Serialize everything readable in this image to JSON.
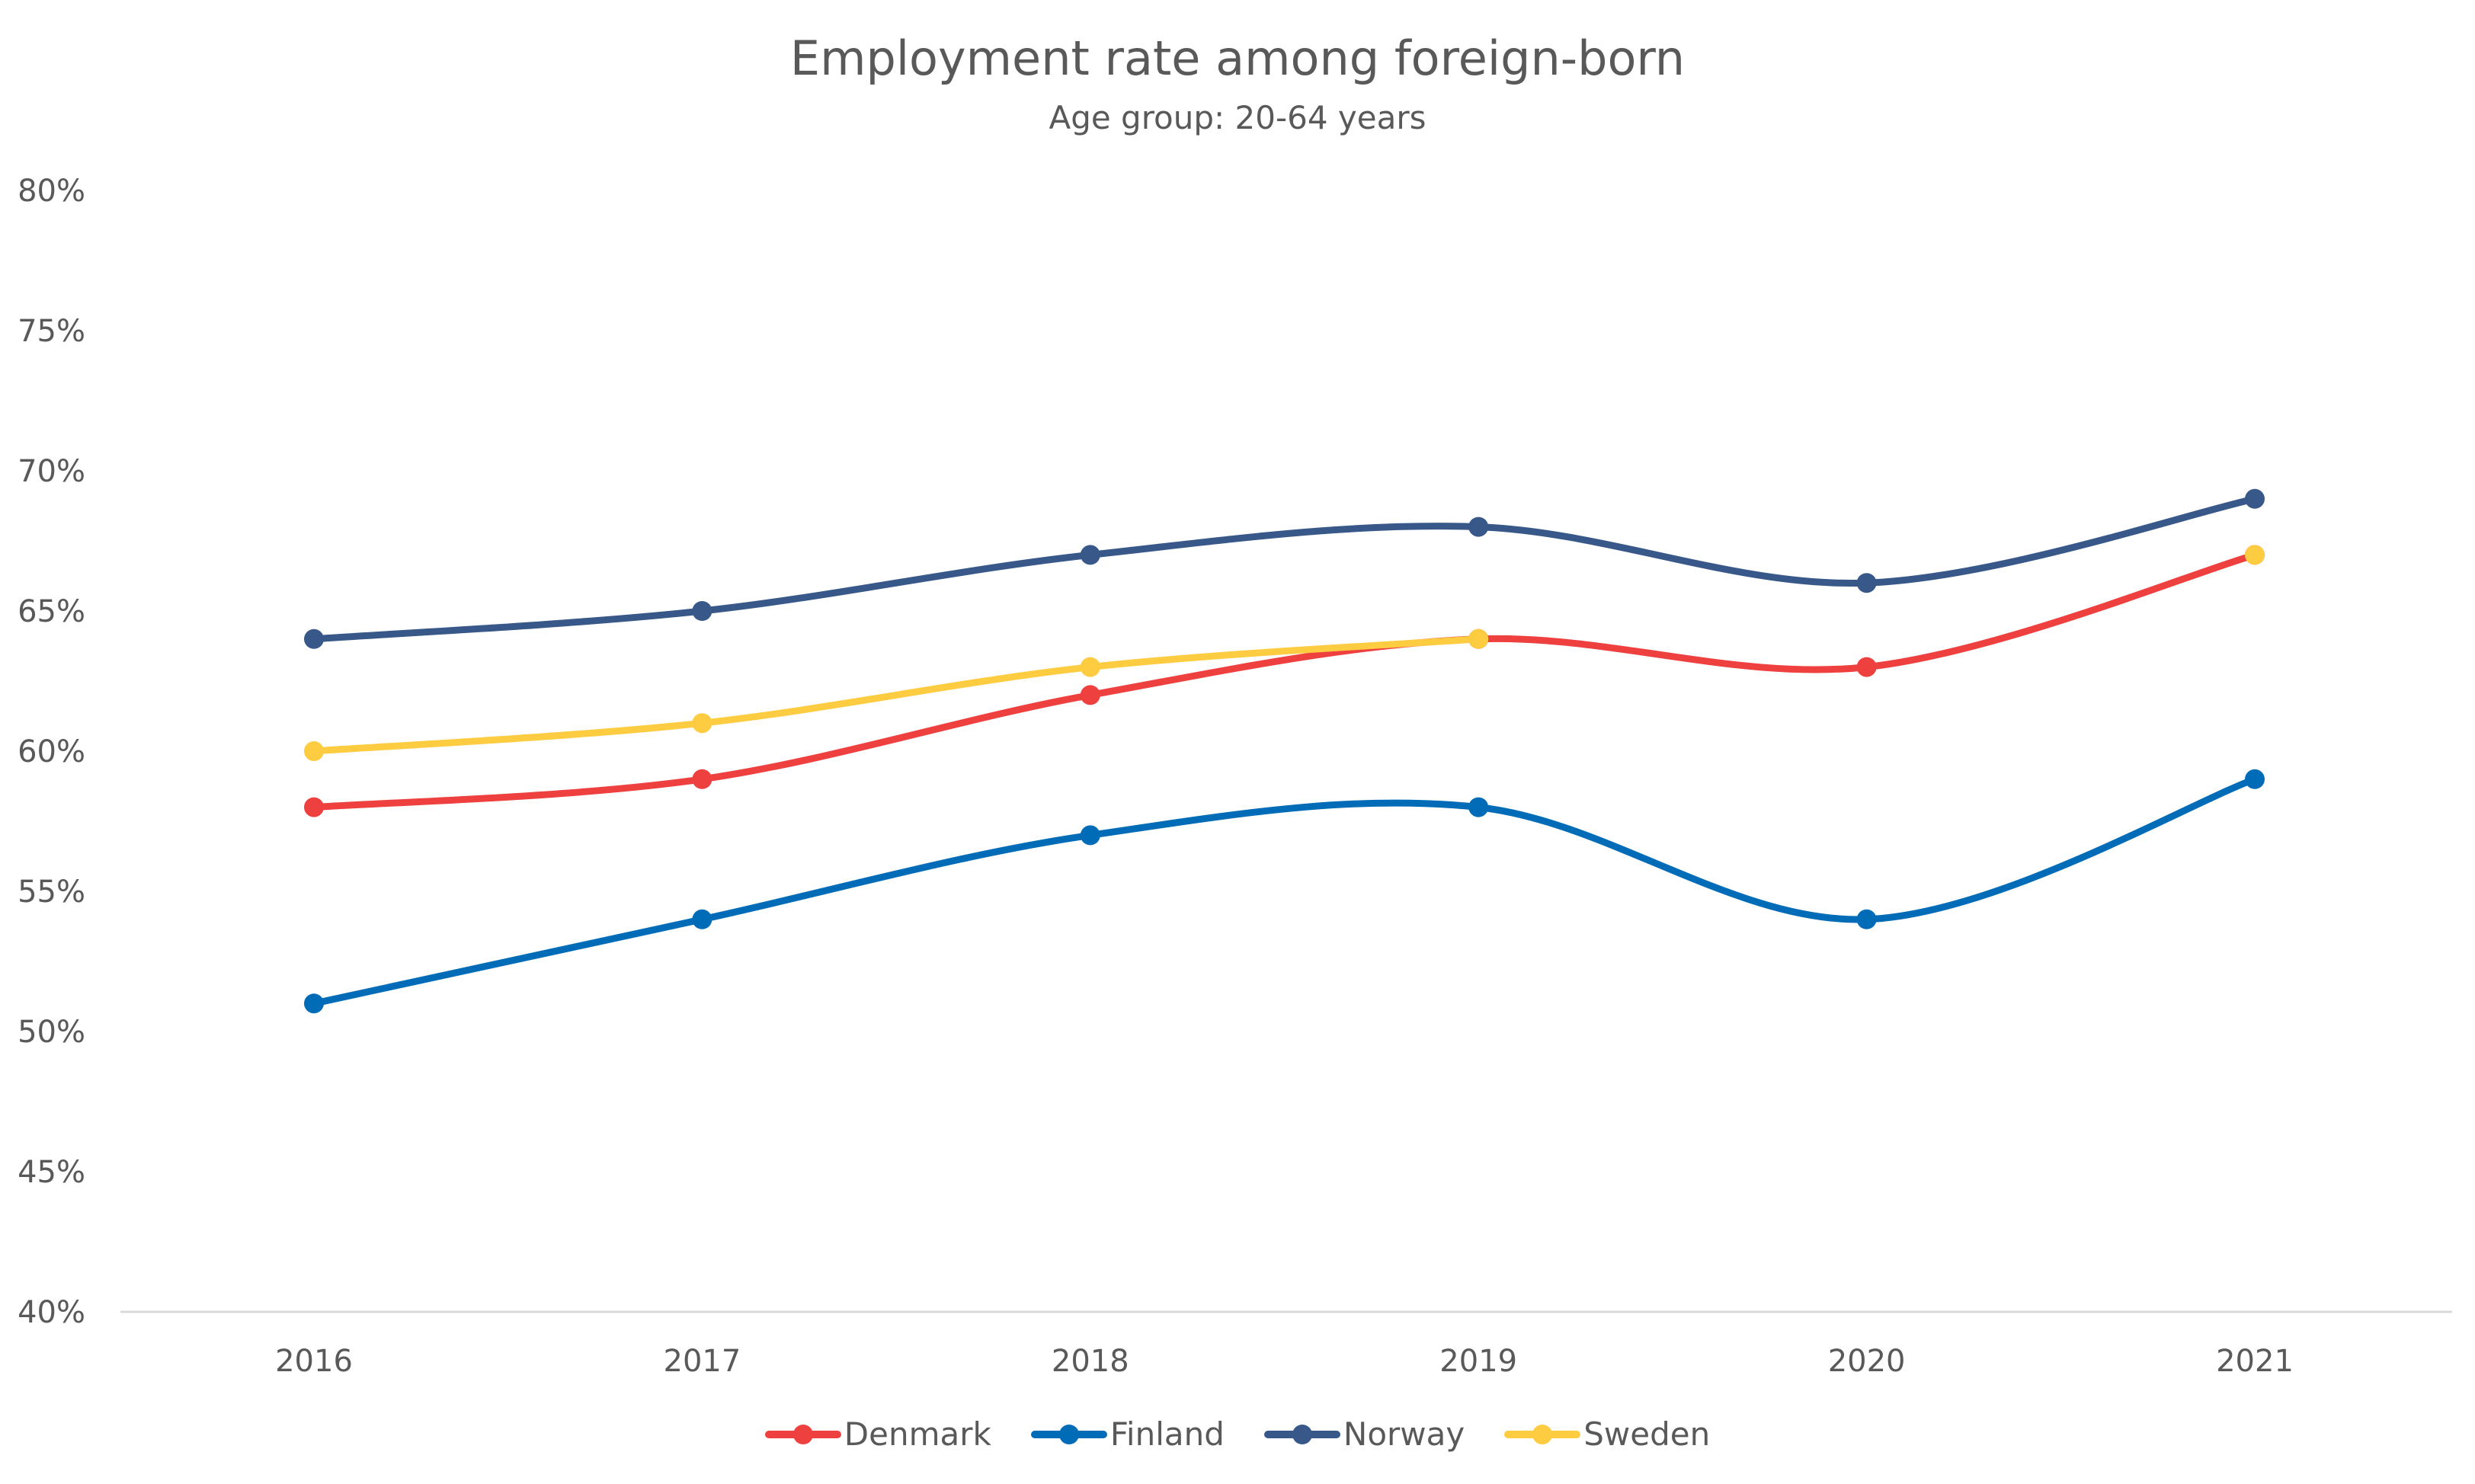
{
  "chart_data": {
    "type": "line",
    "title": "Employment rate among foreign-born",
    "subtitle": "Age group: 20-64 years",
    "xlabel": "",
    "ylabel": "",
    "categories": [
      "2016",
      "2017",
      "2018",
      "2019",
      "2020",
      "2021"
    ],
    "ylim": [
      40,
      80
    ],
    "yticks": [
      80,
      75,
      70,
      65,
      60,
      55,
      50,
      45,
      40
    ],
    "ytick_labels": [
      "80%",
      "75%",
      "70%",
      "65%",
      "60%",
      "55%",
      "50%",
      "45%",
      "40%"
    ],
    "grid": false,
    "smooth": true,
    "legend_position": "bottom",
    "series": [
      {
        "name": "Denmark",
        "color": "#EF4040",
        "values": [
          58,
          59,
          62,
          64,
          63,
          67
        ]
      },
      {
        "name": "Finland",
        "color": "#006BB6",
        "values": [
          51,
          54,
          57,
          58,
          54,
          59
        ]
      },
      {
        "name": "Norway",
        "color": "#375888",
        "values": [
          64,
          65,
          67,
          68,
          66,
          69
        ]
      },
      {
        "name": "Sweden",
        "color": "#FECC41",
        "values": [
          60,
          61,
          63,
          64,
          null,
          67
        ]
      }
    ]
  }
}
